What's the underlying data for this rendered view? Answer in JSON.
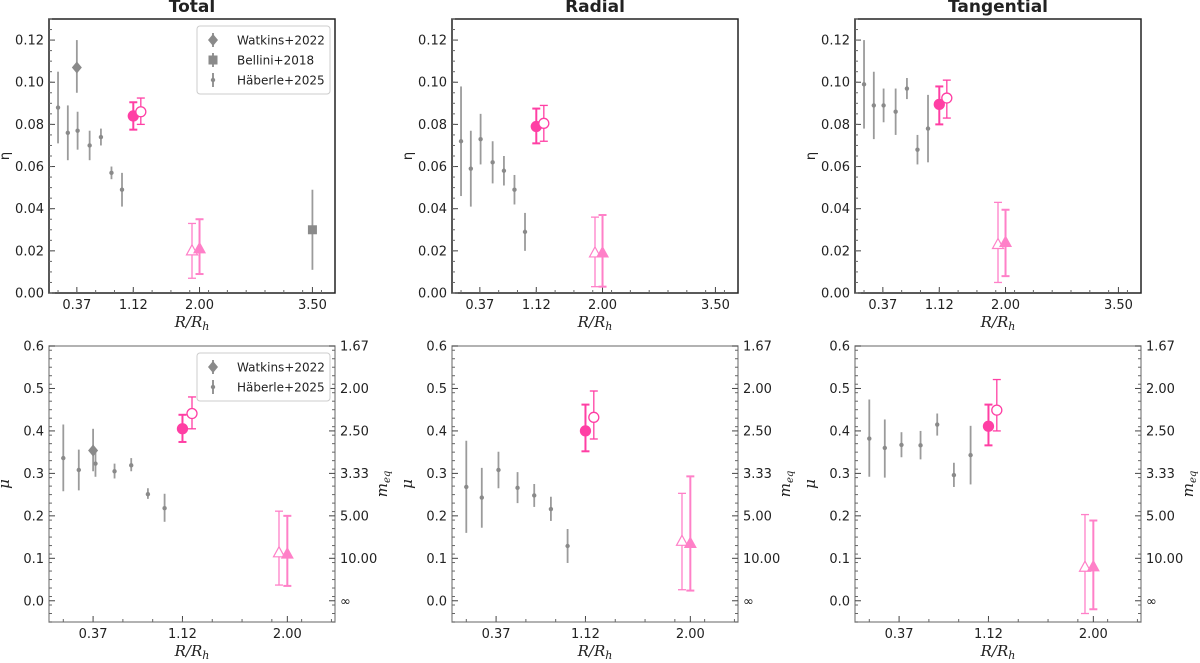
{
  "colors": {
    "gray": "#8a8a8a",
    "pink_strong": "#ff3fa4",
    "pink_light": "#ff80c8",
    "frame": "#222222"
  },
  "x_label": "R/R",
  "x_label_sub": "h",
  "chart_data": [
    {
      "type": "scatter",
      "panel": "total-eta",
      "title": "Total",
      "ylabel": "η",
      "xlim": [
        0,
        3.8
      ],
      "ylim": [
        0,
        0.13
      ],
      "xticks": [
        "0.37",
        "1.12",
        "2.00",
        "3.50"
      ],
      "yticks": [
        "0.00",
        "0.02",
        "0.04",
        "0.06",
        "0.08",
        "0.10",
        "0.12"
      ],
      "legend": {
        "placement": "top-right",
        "entries": [
          "Watkins+2022",
          "Bellini+2018",
          "Häberle+2025"
        ]
      },
      "series": [
        {
          "name": "Häberle+2025",
          "marker": "small-dot",
          "color": "gray",
          "points": [
            [
              0.12,
              0.088,
              0.071,
              0.105
            ],
            [
              0.25,
              0.076,
              0.063,
              0.089
            ],
            [
              0.38,
              0.077,
              0.068,
              0.086
            ],
            [
              0.54,
              0.07,
              0.063,
              0.077
            ],
            [
              0.69,
              0.074,
              0.07,
              0.078
            ],
            [
              0.83,
              0.057,
              0.054,
              0.06
            ],
            [
              0.97,
              0.049,
              0.041,
              0.057
            ]
          ]
        },
        {
          "name": "Watkins+2022",
          "marker": "diamond",
          "color": "gray",
          "points": [
            [
              0.37,
              0.107,
              0.095,
              0.12
            ]
          ]
        },
        {
          "name": "Bellini+2018",
          "marker": "square",
          "color": "gray",
          "points": [
            [
              3.5,
              0.03,
              0.011,
              0.049
            ]
          ]
        },
        {
          "marker": "circle-filled",
          "color": "pink_strong",
          "points": [
            [
              1.12,
              0.084,
              0.0775,
              0.0905
            ]
          ]
        },
        {
          "marker": "circle-open",
          "color": "pink_strong",
          "points": [
            [
              1.22,
              0.086,
              0.08,
              0.0925
            ]
          ]
        },
        {
          "marker": "triangle-open",
          "color": "pink_light",
          "points": [
            [
              1.9,
              0.02,
              0.007,
              0.033
            ]
          ]
        },
        {
          "marker": "triangle-filled",
          "color": "pink_light",
          "points": [
            [
              2.0,
              0.021,
              0.009,
              0.035
            ]
          ]
        }
      ]
    },
    {
      "type": "scatter",
      "panel": "radial-eta",
      "title": "Radial",
      "ylabel": "η",
      "xlim": [
        0,
        3.8
      ],
      "ylim": [
        0,
        0.13
      ],
      "xticks": [
        "0.37",
        "1.12",
        "2.00",
        "3.50"
      ],
      "yticks": [
        "0.00",
        "0.02",
        "0.04",
        "0.06",
        "0.08",
        "0.10",
        "0.12"
      ],
      "series": [
        {
          "marker": "small-dot",
          "color": "gray",
          "points": [
            [
              0.12,
              0.072,
              0.046,
              0.098
            ],
            [
              0.25,
              0.059,
              0.041,
              0.077
            ],
            [
              0.38,
              0.073,
              0.061,
              0.085
            ],
            [
              0.54,
              0.062,
              0.052,
              0.072
            ],
            [
              0.69,
              0.058,
              0.051,
              0.065
            ],
            [
              0.83,
              0.049,
              0.042,
              0.056
            ],
            [
              0.97,
              0.029,
              0.02,
              0.038
            ]
          ]
        },
        {
          "marker": "circle-filled",
          "color": "pink_strong",
          "points": [
            [
              1.12,
              0.079,
              0.071,
              0.0875
            ]
          ]
        },
        {
          "marker": "circle-open",
          "color": "pink_strong",
          "points": [
            [
              1.22,
              0.0805,
              0.072,
              0.089
            ]
          ]
        },
        {
          "marker": "triangle-open",
          "color": "pink_light",
          "points": [
            [
              1.9,
              0.019,
              0.003,
              0.036
            ]
          ]
        },
        {
          "marker": "triangle-filled",
          "color": "pink_light",
          "points": [
            [
              2.0,
              0.019,
              0.003,
              0.037
            ]
          ]
        }
      ]
    },
    {
      "type": "scatter",
      "panel": "tangential-eta",
      "title": "Tangential",
      "ylabel": "η",
      "xlim": [
        0,
        3.8
      ],
      "ylim": [
        0,
        0.13
      ],
      "xticks": [
        "0.37",
        "1.12",
        "2.00",
        "3.50"
      ],
      "yticks": [
        "0.00",
        "0.02",
        "0.04",
        "0.06",
        "0.08",
        "0.10",
        "0.12"
      ],
      "series": [
        {
          "marker": "small-dot",
          "color": "gray",
          "points": [
            [
              0.12,
              0.099,
              0.078,
              0.12
            ],
            [
              0.25,
              0.089,
              0.073,
              0.105
            ],
            [
              0.38,
              0.089,
              0.081,
              0.097
            ],
            [
              0.54,
              0.086,
              0.075,
              0.097
            ],
            [
              0.69,
              0.097,
              0.092,
              0.102
            ],
            [
              0.83,
              0.068,
              0.061,
              0.075
            ],
            [
              0.97,
              0.078,
              0.062,
              0.094
            ]
          ]
        },
        {
          "marker": "circle-filled",
          "color": "pink_strong",
          "points": [
            [
              1.12,
              0.0895,
              0.08,
              0.098
            ]
          ]
        },
        {
          "marker": "circle-open",
          "color": "pink_strong",
          "points": [
            [
              1.22,
              0.0925,
              0.083,
              0.101
            ]
          ]
        },
        {
          "marker": "triangle-open",
          "color": "pink_light",
          "points": [
            [
              1.9,
              0.023,
              0.005,
              0.043
            ]
          ]
        },
        {
          "marker": "triangle-filled",
          "color": "pink_light",
          "points": [
            [
              2.0,
              0.024,
              0.008,
              0.0395
            ]
          ]
        }
      ]
    },
    {
      "type": "scatter",
      "panel": "total-mu",
      "ylabel": "μ",
      "y2label": "m",
      "y2label_sub": "eq",
      "xlim": [
        0,
        2.4
      ],
      "ylim": [
        -0.05,
        0.6
      ],
      "xticks": [
        "0.37",
        "1.12",
        "2.00"
      ],
      "yticks": [
        "0.0",
        "0.1",
        "0.2",
        "0.3",
        "0.4",
        "0.5",
        "0.6"
      ],
      "y2ticks": [
        "∞",
        "10.00",
        "5.00",
        "3.33",
        "2.50",
        "2.00",
        "1.67"
      ],
      "legend": {
        "placement": "top-right",
        "entries": [
          "Watkins+2022",
          "Häberle+2025"
        ]
      },
      "series": [
        {
          "name": "Häberle+2025",
          "marker": "small-dot",
          "color": "gray",
          "points": [
            [
              0.12,
              0.336,
              0.258,
              0.415
            ],
            [
              0.25,
              0.308,
              0.26,
              0.356
            ],
            [
              0.39,
              0.323,
              0.292,
              0.35
            ],
            [
              0.55,
              0.305,
              0.288,
              0.323
            ],
            [
              0.69,
              0.319,
              0.305,
              0.336
            ],
            [
              0.83,
              0.251,
              0.24,
              0.265
            ],
            [
              0.97,
              0.218,
              0.186,
              0.252
            ]
          ]
        },
        {
          "name": "Watkins+2022",
          "marker": "diamond",
          "color": "gray",
          "points": [
            [
              0.37,
              0.354,
              0.305,
              0.405
            ]
          ]
        },
        {
          "marker": "circle-filled",
          "color": "pink_strong",
          "points": [
            [
              1.12,
              0.405,
              0.374,
              0.438
            ]
          ]
        },
        {
          "marker": "circle-open",
          "color": "pink_strong",
          "points": [
            [
              1.2,
              0.441,
              0.405,
              0.48
            ]
          ]
        },
        {
          "marker": "triangle-open",
          "color": "pink_light",
          "points": [
            [
              1.93,
              0.113,
              0.037,
              0.211
            ]
          ]
        },
        {
          "marker": "triangle-filled",
          "color": "pink_light",
          "points": [
            [
              2.0,
              0.11,
              0.035,
              0.2
            ]
          ]
        }
      ]
    },
    {
      "type": "scatter",
      "panel": "radial-mu",
      "ylabel": "μ",
      "y2label": "m",
      "y2label_sub": "eq",
      "xlim": [
        0,
        2.4
      ],
      "ylim": [
        -0.05,
        0.6
      ],
      "xticks": [
        "0.37",
        "1.12",
        "2.00"
      ],
      "yticks": [
        "0.0",
        "0.1",
        "0.2",
        "0.3",
        "0.4",
        "0.5",
        "0.6"
      ],
      "y2ticks": [
        "∞",
        "10.00",
        "5.00",
        "3.33",
        "2.50",
        "2.00",
        "1.67"
      ],
      "series": [
        {
          "marker": "small-dot",
          "color": "gray",
          "points": [
            [
              0.12,
              0.268,
              0.16,
              0.377
            ],
            [
              0.25,
              0.243,
              0.172,
              0.313
            ],
            [
              0.39,
              0.308,
              0.265,
              0.351
            ],
            [
              0.55,
              0.266,
              0.23,
              0.303
            ],
            [
              0.69,
              0.248,
              0.221,
              0.275
            ],
            [
              0.83,
              0.216,
              0.188,
              0.245
            ],
            [
              0.97,
              0.129,
              0.089,
              0.169
            ]
          ]
        },
        {
          "marker": "circle-filled",
          "color": "pink_strong",
          "points": [
            [
              1.12,
              0.4,
              0.352,
              0.462
            ]
          ]
        },
        {
          "marker": "circle-open",
          "color": "pink_strong",
          "points": [
            [
              1.19,
              0.432,
              0.381,
              0.494
            ]
          ]
        },
        {
          "marker": "triangle-open",
          "color": "pink_light",
          "points": [
            [
              1.93,
              0.14,
              0.026,
              0.253
            ]
          ]
        },
        {
          "marker": "triangle-filled",
          "color": "pink_light",
          "points": [
            [
              2.0,
              0.135,
              0.024,
              0.293
            ]
          ]
        }
      ]
    },
    {
      "type": "scatter",
      "panel": "tangential-mu",
      "ylabel": "μ",
      "y2label": "m",
      "y2label_sub": "eq",
      "xlim": [
        0,
        2.4
      ],
      "ylim": [
        -0.05,
        0.6
      ],
      "xticks": [
        "0.37",
        "1.12",
        "2.00"
      ],
      "yticks": [
        "0.0",
        "0.1",
        "0.2",
        "0.3",
        "0.4",
        "0.5",
        "0.6"
      ],
      "y2ticks": [
        "∞",
        "10.00",
        "5.00",
        "3.33",
        "2.50",
        "2.00",
        "1.67"
      ],
      "series": [
        {
          "marker": "small-dot",
          "color": "gray",
          "points": [
            [
              0.12,
              0.382,
              0.292,
              0.474
            ],
            [
              0.25,
              0.36,
              0.29,
              0.427
            ],
            [
              0.39,
              0.367,
              0.338,
              0.397
            ],
            [
              0.55,
              0.366,
              0.333,
              0.4
            ],
            [
              0.69,
              0.415,
              0.389,
              0.441
            ],
            [
              0.83,
              0.296,
              0.268,
              0.325
            ],
            [
              0.97,
              0.343,
              0.274,
              0.412
            ]
          ]
        },
        {
          "marker": "circle-filled",
          "color": "pink_strong",
          "points": [
            [
              1.12,
              0.411,
              0.366,
              0.462
            ]
          ]
        },
        {
          "marker": "circle-open",
          "color": "pink_strong",
          "points": [
            [
              1.19,
              0.449,
              0.4,
              0.521
            ]
          ]
        },
        {
          "marker": "triangle-open",
          "color": "pink_light",
          "points": [
            [
              1.93,
              0.079,
              -0.03,
              0.203
            ]
          ]
        },
        {
          "marker": "triangle-filled",
          "color": "pink_light",
          "points": [
            [
              2.0,
              0.08,
              -0.02,
              0.189
            ]
          ]
        }
      ]
    }
  ]
}
